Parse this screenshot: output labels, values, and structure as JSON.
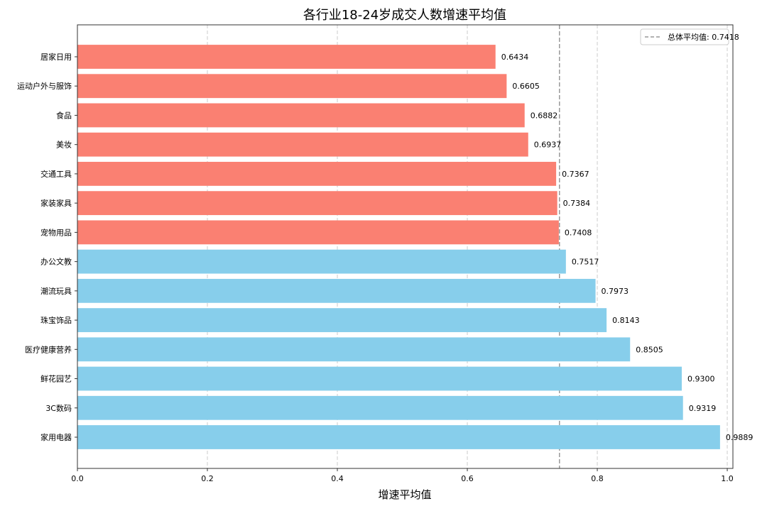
{
  "chart_data": {
    "type": "bar",
    "orientation": "horizontal",
    "title": "各行业18-24岁成交人数增速平均值",
    "xlabel": "增速平均值",
    "ylabel": "",
    "xlim": [
      0,
      1.0087
    ],
    "xticks": [
      "0.0",
      "0.2",
      "0.4",
      "0.6",
      "0.8",
      "1.0"
    ],
    "grid": "x-axis dashed",
    "categories": [
      "居家日用",
      "运动户外与服饰",
      "食品",
      "美妆",
      "交通工具",
      "家装家具",
      "宠物用品",
      "办公文教",
      "潮流玩具",
      "珠宝饰品",
      "医疗健康营养",
      "鲜花园艺",
      "3C数码",
      "家用电器"
    ],
    "values": [
      0.6434,
      0.6605,
      0.6882,
      0.6937,
      0.7367,
      0.7384,
      0.7408,
      0.7517,
      0.7973,
      0.8143,
      0.8505,
      0.93,
      0.9319,
      0.9889
    ],
    "data_labels": [
      "0.6434",
      "0.6605",
      "0.6882",
      "0.6937",
      "0.7367",
      "0.7384",
      "0.7408",
      "0.7517",
      "0.7973",
      "0.8143",
      "0.8505",
      "0.9300",
      "0.9319",
      "0.9889"
    ],
    "reference_line": {
      "value": 0.7418,
      "label": "总体平均值: 0.7418",
      "style": "dashed",
      "color": "#999999"
    },
    "legend_position": "top-right",
    "colors": {
      "below_mean": "#FA8072",
      "above_mean": "#87CEEB"
    }
  }
}
